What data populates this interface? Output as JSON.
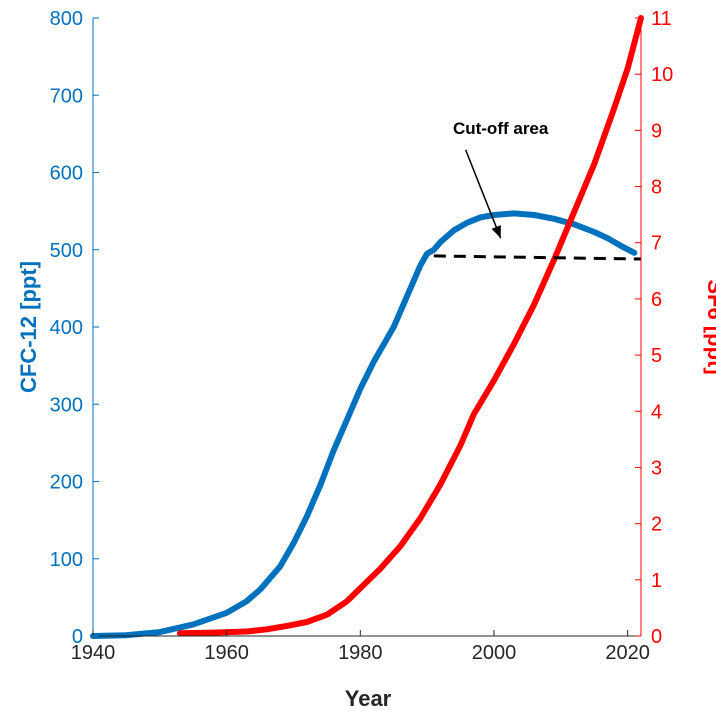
{
  "chart_data": {
    "type": "line",
    "title": "",
    "xlabel": "Year",
    "ylabel_left": "CFC-12 [ppt]",
    "ylabel_right": "SF6 [ppt]",
    "xlim": [
      1940,
      2022
    ],
    "ylim_left": [
      0,
      800
    ],
    "ylim_right": [
      0,
      11
    ],
    "x_ticks": [
      1940,
      1960,
      1980,
      2000,
      2020
    ],
    "y_left_ticks": [
      0,
      100,
      200,
      300,
      400,
      500,
      600,
      700,
      800
    ],
    "y_right_ticks": [
      0,
      1,
      2,
      3,
      4,
      5,
      6,
      7,
      8,
      9,
      10,
      11
    ],
    "grid": false,
    "colors": {
      "cfc12": "#0072BD",
      "sf6": "#FF0000",
      "cutoff": "#000000",
      "axis": "#262626"
    },
    "series": [
      {
        "axis": "left",
        "x": [
          1940,
          1945,
          1950,
          1955,
          1960,
          1963,
          1965,
          1968,
          1970,
          1972,
          1974,
          1976,
          1978,
          1980,
          1982,
          1985,
          1987,
          1989,
          1990,
          1991,
          1992,
          1994,
          1996,
          1998,
          2000,
          2003,
          2006,
          2009,
          2012,
          2015,
          2017,
          2019,
          2021
        ],
        "values": [
          0,
          1,
          5,
          15,
          30,
          45,
          60,
          90,
          120,
          155,
          195,
          240,
          280,
          320,
          355,
          400,
          440,
          480,
          495,
          500,
          510,
          525,
          535,
          542,
          545,
          547,
          545,
          540,
          533,
          523,
          515,
          505,
          496
        ]
      },
      {
        "axis": "right",
        "x": [
          1953,
          1958,
          1963,
          1966,
          1969,
          1972,
          1975,
          1978,
          1980,
          1983,
          1986,
          1989,
          1992,
          1995,
          1997,
          2000,
          2003,
          2006,
          2009,
          2012,
          2015,
          2018,
          2020,
          2022
        ],
        "values": [
          0.05,
          0.06,
          0.08,
          0.12,
          0.18,
          0.25,
          0.38,
          0.62,
          0.85,
          1.2,
          1.6,
          2.1,
          2.7,
          3.4,
          3.95,
          4.55,
          5.2,
          5.9,
          6.7,
          7.55,
          8.4,
          9.4,
          10.1,
          11.0
        ]
      }
    ],
    "cutoff_line": {
      "x": [
        1991,
        2022
      ],
      "y": [
        492,
        488
      ]
    },
    "annotation": {
      "text": "Cut-off area",
      "text_x": 2001,
      "text_y": 650,
      "arrow_to_x": 2001,
      "arrow_to_y": 515
    }
  }
}
